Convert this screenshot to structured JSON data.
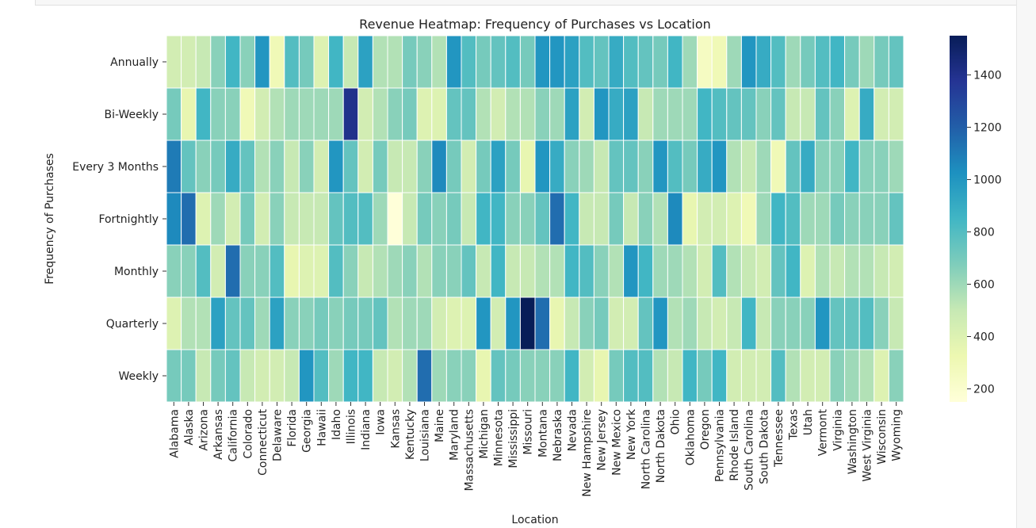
{
  "chart_data": {
    "type": "heatmap",
    "title": "Revenue Heatmap: Frequency of Purchases vs Location",
    "xlabel": "Location",
    "ylabel": "Frequency of Purchases",
    "colormap": "YlGnBu",
    "color_range": [
      150,
      1550
    ],
    "colorbar_ticks": [
      200,
      400,
      600,
      800,
      1000,
      1200,
      1400
    ],
    "y_categories": [
      "Annually",
      "Bi-Weekly",
      "Every 3 Months",
      "Fortnightly",
      "Monthly",
      "Quarterly",
      "Weekly"
    ],
    "x_categories": [
      "Alabama",
      "Alaska",
      "Arizona",
      "Arkansas",
      "California",
      "Colorado",
      "Connecticut",
      "Delaware",
      "Florida",
      "Georgia",
      "Hawaii",
      "Idaho",
      "Illinois",
      "Indiana",
      "Iowa",
      "Kansas",
      "Kentucky",
      "Louisiana",
      "Maine",
      "Maryland",
      "Massachusetts",
      "Michigan",
      "Minnesota",
      "Mississippi",
      "Missouri",
      "Montana",
      "Nebraska",
      "Nevada",
      "New Hampshire",
      "New Jersey",
      "New Mexico",
      "New York",
      "North Carolina",
      "North Dakota",
      "Ohio",
      "Oklahoma",
      "Oregon",
      "Pennsylvania",
      "Rhode Island",
      "South Carolina",
      "South Dakota",
      "Tennessee",
      "Texas",
      "Utah",
      "Vermont",
      "Virginia",
      "Washington",
      "West Virginia",
      "Wisconsin",
      "Wyoming"
    ],
    "x_tick_labels": [
      "Alabama",
      "Alaska",
      "Arizona",
      "Arkansas",
      "California",
      "Colorado",
      "Connecticut",
      "Delaware",
      "Florida",
      "Georgia",
      "Hawaii",
      "Idaho",
      "Illinois",
      "Indiana",
      "Iowa",
      "Kansas",
      "Kentucky",
      "Louisiana",
      "Maine",
      "Maryland",
      "Massachusetts",
      "Michigan",
      "Minnesota",
      "Mississippi",
      "Missouri",
      "Montana",
      "Nebraska",
      "Nevada",
      "New Hampshire",
      "New Jersey",
      "New Mexico",
      "New York",
      "North Carolina",
      "North Dakota",
      "Ohio",
      "Oklahoma",
      "Oregon",
      "Pennsylvania",
      "Rhode Island",
      "South Carolina",
      "South Dakota",
      "Tennessee",
      "Texas",
      "Utah",
      "Vermont",
      "Virginia",
      "Washington",
      "West Virginia",
      "Wisconsin",
      "Wyoming"
    ],
    "values": [
      [
        450,
        450,
        500,
        650,
        850,
        650,
        1000,
        300,
        800,
        700,
        400,
        850,
        500,
        950,
        550,
        550,
        700,
        650,
        550,
        1000,
        800,
        700,
        750,
        800,
        700,
        1000,
        1000,
        950,
        800,
        750,
        900,
        800,
        750,
        700,
        850,
        600,
        250,
        300,
        600,
        1000,
        900,
        800,
        600,
        700,
        800,
        850,
        700,
        600,
        700,
        750
      ],
      [
        700,
        350,
        850,
        650,
        650,
        300,
        450,
        550,
        600,
        600,
        600,
        600,
        1400,
        450,
        550,
        650,
        700,
        400,
        400,
        750,
        750,
        550,
        450,
        550,
        550,
        650,
        600,
        950,
        450,
        1000,
        900,
        950,
        500,
        600,
        600,
        600,
        850,
        800,
        750,
        750,
        650,
        750,
        500,
        500,
        750,
        650,
        400,
        900,
        450,
        450
      ],
      [
        1100,
        750,
        650,
        700,
        900,
        750,
        550,
        650,
        500,
        650,
        450,
        1000,
        750,
        450,
        700,
        500,
        500,
        650,
        1050,
        700,
        450,
        700,
        950,
        700,
        350,
        1000,
        900,
        650,
        600,
        500,
        750,
        750,
        650,
        1000,
        800,
        700,
        900,
        1000,
        550,
        500,
        600,
        300,
        750,
        900,
        650,
        650,
        850,
        650,
        650,
        600
      ],
      [
        1050,
        1150,
        400,
        600,
        450,
        700,
        450,
        650,
        500,
        500,
        500,
        750,
        800,
        800,
        600,
        150,
        500,
        700,
        650,
        700,
        500,
        850,
        850,
        650,
        650,
        750,
        1150,
        850,
        500,
        500,
        700,
        500,
        650,
        550,
        1050,
        350,
        450,
        450,
        400,
        300,
        600,
        850,
        800,
        600,
        600,
        700,
        650,
        650,
        650,
        750
      ],
      [
        650,
        650,
        800,
        450,
        1150,
        650,
        650,
        800,
        350,
        400,
        400,
        800,
        650,
        500,
        550,
        600,
        650,
        550,
        650,
        650,
        750,
        500,
        850,
        500,
        500,
        550,
        550,
        850,
        800,
        650,
        550,
        1000,
        850,
        600,
        600,
        550,
        450,
        800,
        550,
        500,
        450,
        750,
        850,
        400,
        550,
        500,
        550,
        550,
        500,
        450
      ],
      [
        400,
        550,
        550,
        950,
        750,
        750,
        600,
        950,
        650,
        650,
        700,
        650,
        700,
        700,
        750,
        550,
        600,
        600,
        450,
        400,
        400,
        1000,
        450,
        1000,
        1550,
        1150,
        350,
        500,
        650,
        700,
        450,
        450,
        750,
        1000,
        550,
        600,
        500,
        450,
        500,
        850,
        500,
        650,
        650,
        650,
        1000,
        750,
        750,
        800,
        650,
        500
      ],
      [
        700,
        700,
        500,
        700,
        750,
        500,
        450,
        450,
        500,
        1000,
        800,
        600,
        850,
        850,
        500,
        450,
        550,
        1150,
        600,
        650,
        650,
        350,
        750,
        700,
        650,
        650,
        650,
        850,
        450,
        350,
        700,
        800,
        800,
        550,
        500,
        850,
        700,
        850,
        450,
        450,
        450,
        800,
        550,
        450,
        450,
        650,
        600,
        550,
        400,
        650
      ]
    ]
  }
}
